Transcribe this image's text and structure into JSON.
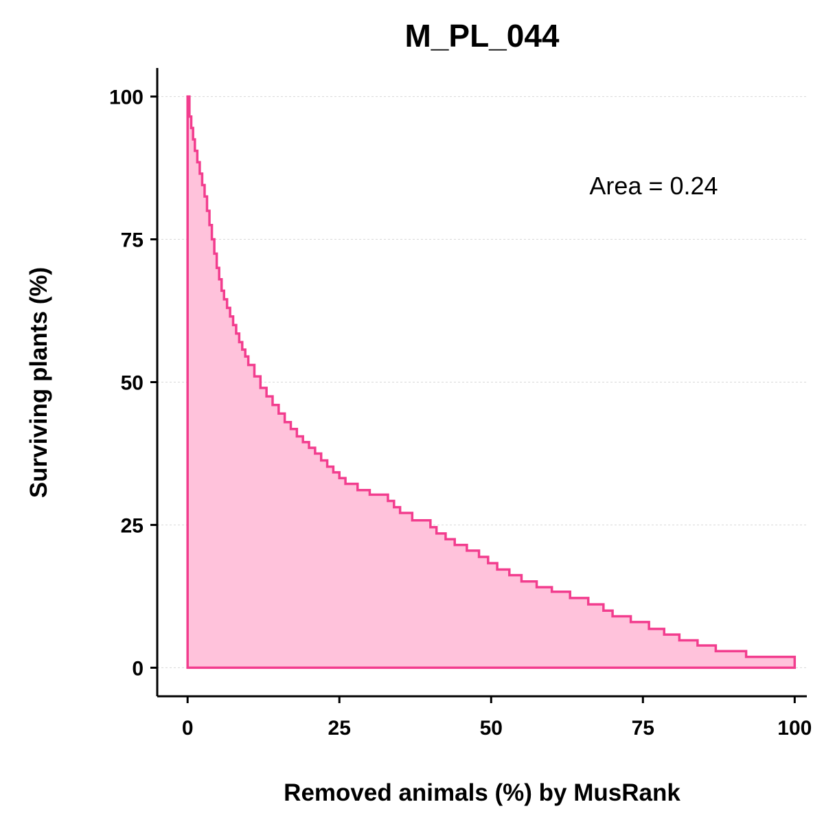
{
  "chart_data": {
    "type": "area",
    "title": "M_PL_044",
    "xlabel": "Removed animals (%) by MusRank",
    "ylabel": "Surviving plants (%)",
    "annotation": "Area = 0.24",
    "xlim": [
      -5,
      102
    ],
    "ylim": [
      -5,
      105
    ],
    "x_ticks": [
      0,
      25,
      50,
      75,
      100
    ],
    "y_ticks": [
      0,
      25,
      50,
      75,
      100
    ],
    "x_tick_labels": [
      "0",
      "25",
      "50",
      "75",
      "100"
    ],
    "y_tick_labels": [
      "0",
      "25",
      "50",
      "75",
      "100"
    ],
    "grid": "horizontal dashed",
    "step": true,
    "color": "#F23D8E",
    "fill_color": "#FFC2DB",
    "series": [
      {
        "x": [
          0,
          0.3,
          0.6,
          0.9,
          1.2,
          1.6,
          2.0,
          2.4,
          2.8,
          3.2,
          3.6,
          4.0,
          4.4,
          4.8,
          5.2,
          5.6,
          6.0,
          6.5,
          7.0,
          7.5,
          8.0,
          8.5,
          9.0,
          9.5,
          10.0,
          11.0,
          12.0,
          13.0,
          14.0,
          15.0,
          16.0,
          17.0,
          18.0,
          19.0,
          20.0,
          21.0,
          22.0,
          23.0,
          24.0,
          25.0,
          26.0,
          28.0,
          30.0,
          33.0,
          34.0,
          35.0,
          37.0,
          40.0,
          41.0,
          42.5,
          44.0,
          46.0,
          48.0,
          49.5,
          51.0,
          53.0,
          55.0,
          57.5,
          60.0,
          63.0,
          66.0,
          68.5,
          70.0,
          73.0,
          76.0,
          78.5,
          81.0,
          84.0,
          87.0,
          92.0,
          100.0
        ],
        "y": [
          100,
          96.5,
          94.5,
          92.5,
          90.5,
          88.5,
          86.5,
          84.5,
          82.5,
          80,
          77.5,
          75,
          72.5,
          70,
          68,
          66,
          64.5,
          63,
          61.5,
          60,
          58.5,
          57,
          55.7,
          54.5,
          53,
          51,
          49,
          47.5,
          46,
          44.5,
          43,
          41.8,
          40.5,
          39.5,
          38.5,
          37.5,
          36.3,
          35.2,
          34.2,
          33.2,
          32.2,
          31.1,
          30.3,
          29.2,
          28.1,
          27.1,
          25.8,
          24.6,
          23.5,
          22.5,
          21.5,
          20.5,
          19.4,
          18.3,
          17.2,
          16.2,
          15.1,
          14.1,
          13.3,
          12.2,
          11.1,
          10.0,
          9.0,
          8.0,
          6.8,
          5.8,
          4.8,
          3.9,
          2.9,
          1.9,
          0.9
        ]
      }
    ]
  }
}
